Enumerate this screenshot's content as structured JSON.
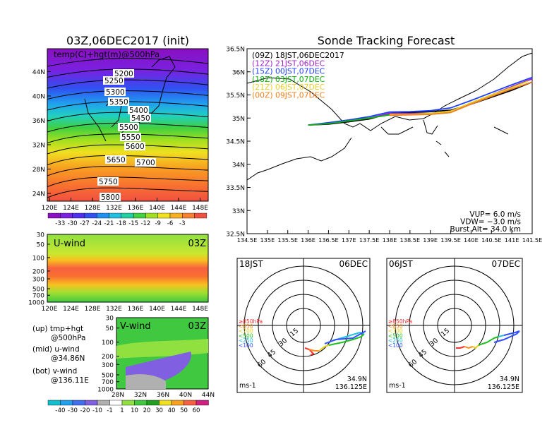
{
  "left_panel": {
    "title": "03Z,06DEC2017 (init)",
    "map_label": "temp(C)+hgt(m)@500hPa",
    "lat_ticks": [
      "24N",
      "28N",
      "32N",
      "36N",
      "40N",
      "44N"
    ],
    "lon_ticks": [
      "120E",
      "124E",
      "128E",
      "132E",
      "136E",
      "140E",
      "144E",
      "148E"
    ],
    "contour_labels": [
      "5200",
      "5250",
      "5300",
      "5350",
      "5400",
      "5450",
      "5500",
      "5550",
      "5600",
      "5650",
      "5700",
      "5750",
      "5800"
    ],
    "temp_colorbar": [
      "-33",
      "-30",
      "-27",
      "-24",
      "-21",
      "-18",
      "-15",
      "-12",
      "-9",
      "-6",
      "-3"
    ],
    "uwind_label": "U-wind",
    "uwind_time": "03Z",
    "uwind_p_ticks": [
      "30",
      "50",
      "100",
      "200",
      "300",
      "500",
      "700",
      "1000"
    ],
    "uwind_lon_ticks": [
      "120E",
      "124E",
      "128E",
      "132E",
      "136E",
      "140E",
      "144E",
      "148E"
    ],
    "vwind_label": "V-wind",
    "vwind_time": "03Z",
    "vwind_p_ticks": [
      "30",
      "50",
      "100",
      "200",
      "300",
      "500",
      "700",
      "1000"
    ],
    "vwind_lat_ticks": [
      "28N",
      "32N",
      "36N",
      "40N",
      "44N"
    ],
    "wind_colorbar": [
      "-40",
      "-30",
      "-20",
      "-10",
      "-1",
      "1",
      "10",
      "20",
      "30",
      "40",
      "50",
      "60"
    ],
    "notes": [
      "(up)  tmp+hgt",
      "@500hPa",
      "(mid)  u-wind",
      "@34.86N",
      "(bot)  v-wind",
      "@136.11E"
    ]
  },
  "right_panel": {
    "title": "Sonde Tracking Forecast",
    "legend": [
      {
        "text": "(09Z)  18JST,06DEC2017",
        "color": "#000000"
      },
      {
        "text": "(12Z)  21JST,06DEC",
        "color": "#a020c8"
      },
      {
        "text": "(15Z)  00JST,07DEC",
        "color": "#2040ff"
      },
      {
        "text": "(18Z)  03JST,07DEC",
        "color": "#10b010"
      },
      {
        "text": "(21Z)  06JST,07DEC",
        "color": "#e8d020"
      },
      {
        "text": "(00Z)  09JST,07DEC",
        "color": "#f08020"
      }
    ],
    "lat_ticks": [
      "32.5N",
      "33N",
      "33.5N",
      "34N",
      "34.5N",
      "35N",
      "35.5N",
      "36N",
      "36.5N"
    ],
    "lon_ticks": [
      "134.5E",
      "135E",
      "135.5E",
      "136E",
      "136.5E",
      "137E",
      "137.5E",
      "138E",
      "138.5E",
      "139E",
      "139.5E",
      "140E",
      "140.5E",
      "141E",
      "141.5E"
    ],
    "params": [
      "VUP=  6.0  m/s",
      "VDW= −3.0  m/s",
      "Burst Alt=  34.0  km"
    ]
  },
  "hodographs": [
    {
      "time": "18JST",
      "date": "06DEC",
      "pos": [
        "34.9N",
        "136.125E"
      ],
      "unit": "ms-1",
      "rings": [
        "15",
        "30",
        "45",
        "60"
      ],
      "levels": [
        {
          "t": "≥850hPa",
          "c": "#ff3030"
        },
        {
          "t": "<850",
          "c": "#ff9020"
        },
        {
          "t": "<700",
          "c": "#e8d020"
        },
        {
          "t": "<500",
          "c": "#20c020"
        },
        {
          "t": "<250",
          "c": "#20c0e0"
        },
        {
          "t": "<100",
          "c": "#3050ff"
        }
      ]
    },
    {
      "time": "06JST",
      "date": "07DEC",
      "pos": [
        "34.9N",
        "136.125E"
      ],
      "unit": "ms-1",
      "rings": [
        "15",
        "30",
        "45",
        "60"
      ],
      "levels": [
        {
          "t": "≥850hPa",
          "c": "#ff3030"
        },
        {
          "t": "<850",
          "c": "#ff9020"
        },
        {
          "t": "<700",
          "c": "#e8d020"
        },
        {
          "t": "<500",
          "c": "#20c020"
        },
        {
          "t": "<250",
          "c": "#20c0e0"
        },
        {
          "t": "<100",
          "c": "#3050ff"
        }
      ]
    }
  ],
  "chart_data": [
    {
      "type": "heatmap",
      "title": "03Z,06DEC2017 (init)",
      "label": "temp(C)+hgt(m)@500hPa",
      "x_range": [
        "120E",
        "150E"
      ],
      "y_range": [
        "22N",
        "48N"
      ],
      "contour_levels_m": [
        5200,
        5250,
        5300,
        5350,
        5400,
        5450,
        5500,
        5550,
        5600,
        5650,
        5700,
        5750,
        5800
      ],
      "colorbar_C": [
        -33,
        -30,
        -27,
        -24,
        -21,
        -18,
        -15,
        -12,
        -9,
        -6,
        -3
      ]
    },
    {
      "type": "heatmap",
      "label": "U-wind",
      "y_ticks_hPa": [
        30,
        50,
        100,
        200,
        300,
        500,
        700,
        1000
      ],
      "x_range": [
        "120E",
        "150E"
      ]
    },
    {
      "type": "heatmap",
      "label": "V-wind",
      "y_ticks_hPa": [
        30,
        50,
        100,
        200,
        300,
        500,
        700,
        1000
      ],
      "x_range": [
        "28N",
        "44N"
      ],
      "colorbar_ms": [
        -40,
        -30,
        -20,
        -10,
        -1,
        1,
        10,
        20,
        30,
        40,
        50,
        60
      ]
    },
    {
      "type": "line",
      "title": "Sonde Tracking Forecast",
      "xlim": [
        134.5,
        141.5
      ],
      "ylim": [
        32.5,
        36.5
      ],
      "series": [
        {
          "name": "(09Z)  18JST,06DEC2017",
          "color": "#000000",
          "x": [
            136.0,
            136.5,
            137.0,
            137.5,
            138.0,
            138.5,
            139.0,
            139.5,
            140.0,
            140.5,
            141.0,
            141.5
          ],
          "y": [
            34.85,
            34.87,
            34.92,
            34.98,
            35.1,
            35.12,
            35.14,
            35.17,
            35.3,
            35.45,
            35.6,
            35.78
          ]
        },
        {
          "name": "(12Z)  21JST,06DEC",
          "color": "#a020c8",
          "x": [
            136.0,
            136.5,
            137.0,
            137.5,
            138.0,
            138.5,
            139.0,
            139.5,
            140.0,
            140.5,
            141.0,
            141.5
          ],
          "y": [
            34.85,
            34.88,
            34.94,
            35.0,
            35.1,
            35.1,
            35.1,
            35.15,
            35.32,
            35.5,
            35.68,
            35.85
          ]
        },
        {
          "name": "(15Z)  00JST,07DEC",
          "color": "#2040ff",
          "x": [
            136.0,
            136.5,
            137.0,
            137.5,
            138.0,
            138.5,
            139.0,
            139.5,
            140.0,
            140.5,
            141.0,
            141.5
          ],
          "y": [
            34.85,
            34.9,
            34.96,
            35.03,
            35.13,
            35.14,
            35.16,
            35.22,
            35.38,
            35.55,
            35.72,
            35.88
          ]
        },
        {
          "name": "(18Z)  03JST,07DEC",
          "color": "#10b010",
          "x": [
            136.0,
            136.5,
            137.0,
            137.5,
            138.0,
            138.5,
            139.0,
            139.5
          ],
          "y": [
            34.85,
            34.88,
            34.94,
            35.0,
            35.07,
            35.08,
            35.08,
            35.12
          ]
        },
        {
          "name": "(21Z)  06JST,07DEC",
          "color": "#e8d020",
          "x": [
            138.0,
            138.5,
            139.0,
            139.5,
            140.0,
            140.5,
            141.0,
            141.4
          ],
          "y": [
            35.08,
            35.08,
            35.1,
            35.15,
            35.33,
            35.5,
            35.66,
            35.8
          ]
        },
        {
          "name": "(00Z)  09JST,07DEC",
          "color": "#f08020",
          "x": [
            138.0,
            138.5,
            139.0,
            139.5,
            140.0,
            140.5,
            141.0,
            141.5
          ],
          "y": [
            35.06,
            35.07,
            35.08,
            35.12,
            35.3,
            35.47,
            35.63,
            35.78
          ]
        }
      ]
    }
  ]
}
